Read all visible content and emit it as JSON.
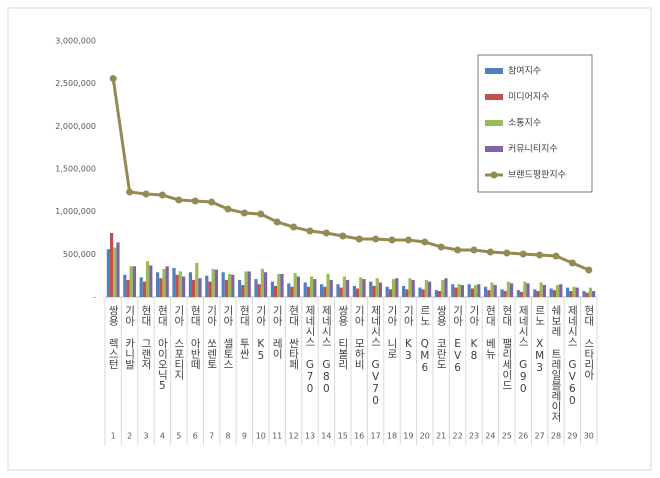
{
  "chart_data": {
    "type": "bar_line",
    "categories": [
      "쌍용 렉스턴",
      "기아 카니발",
      "현대 그랜저",
      "현대 아이오닉5",
      "기아 스포티지",
      "현대 아반떼",
      "기아 쏘렌토",
      "기아 셀토스",
      "현대 투싼",
      "기아 K5",
      "기아 레이",
      "현대 싼타페",
      "제네시스 G70",
      "제네시스 G80",
      "쌍용 티볼리",
      "기아 모하비",
      "제네시스 GV70",
      "기아 니로",
      "기아 K3",
      "르노 QM6",
      "쌍용 코란도",
      "기아 EV6",
      "기아 K8",
      "현대 베뉴",
      "현대 팰리세이드",
      "제네시스 G90",
      "르노 XM3",
      "쉐보레 트레일블레이저",
      "제네시스 GV60",
      "현대 스타리아"
    ],
    "ranks": [
      "1",
      "2",
      "3",
      "4",
      "5",
      "6",
      "7",
      "8",
      "9",
      "10",
      "11",
      "12",
      "13",
      "14",
      "15",
      "16",
      "17",
      "18",
      "19",
      "20",
      "21",
      "22",
      "23",
      "24",
      "25",
      "26",
      "27",
      "28",
      "29",
      "30"
    ],
    "series": [
      {
        "name": "참여지수",
        "color": "#4f81bd",
        "values": [
          560000,
          260000,
          230000,
          290000,
          340000,
          290000,
          250000,
          290000,
          200000,
          210000,
          180000,
          160000,
          170000,
          150000,
          150000,
          130000,
          180000,
          120000,
          130000,
          110000,
          80000,
          150000,
          150000,
          120000,
          90000,
          80000,
          90000,
          100000,
          110000,
          70000
        ]
      },
      {
        "name": "미디어지수",
        "color": "#c0504d",
        "values": [
          750000,
          200000,
          180000,
          220000,
          260000,
          200000,
          180000,
          200000,
          140000,
          150000,
          130000,
          120000,
          120000,
          120000,
          110000,
          100000,
          130000,
          90000,
          90000,
          90000,
          70000,
          110000,
          100000,
          80000,
          70000,
          60000,
          70000,
          80000,
          70000,
          50000
        ]
      },
      {
        "name": "소통지수",
        "color": "#9bbb59",
        "values": [
          580000,
          360000,
          420000,
          330000,
          300000,
          400000,
          330000,
          270000,
          300000,
          330000,
          270000,
          280000,
          240000,
          270000,
          240000,
          230000,
          220000,
          210000,
          220000,
          200000,
          200000,
          150000,
          140000,
          170000,
          180000,
          180000,
          170000,
          140000,
          120000,
          110000
        ]
      },
      {
        "name": "커뮤니티지수",
        "color": "#8064a2",
        "values": [
          640000,
          360000,
          370000,
          360000,
          240000,
          220000,
          320000,
          260000,
          300000,
          290000,
          270000,
          240000,
          210000,
          200000,
          200000,
          210000,
          170000,
          220000,
          200000,
          180000,
          220000,
          140000,
          150000,
          140000,
          160000,
          160000,
          140000,
          150000,
          110000,
          70000
        ]
      }
    ],
    "line": {
      "name": "브랜드평판지수",
      "color": "#948a54",
      "values": [
        2560000,
        1230000,
        1207000,
        1195000,
        1137000,
        1125000,
        1113000,
        1031000,
        984000,
        973000,
        879000,
        820000,
        773000,
        750000,
        715000,
        680000,
        680000,
        668000,
        668000,
        645000,
        586000,
        551000,
        551000,
        527000,
        516000,
        504000,
        492000,
        480000,
        398000,
        316000
      ]
    },
    "ylim": [
      0,
      3000000
    ],
    "yticks": [
      {
        "value": 0,
        "label": "-"
      },
      {
        "value": 500000,
        "label": "500,000"
      },
      {
        "value": 1000000,
        "label": "1,000,000"
      },
      {
        "value": 1500000,
        "label": "1,500,000"
      },
      {
        "value": 2000000,
        "label": "2,000,000"
      },
      {
        "value": 2500000,
        "label": "2,500,000"
      },
      {
        "value": 3000000,
        "label": "3,000,000"
      }
    ],
    "grid": false
  }
}
